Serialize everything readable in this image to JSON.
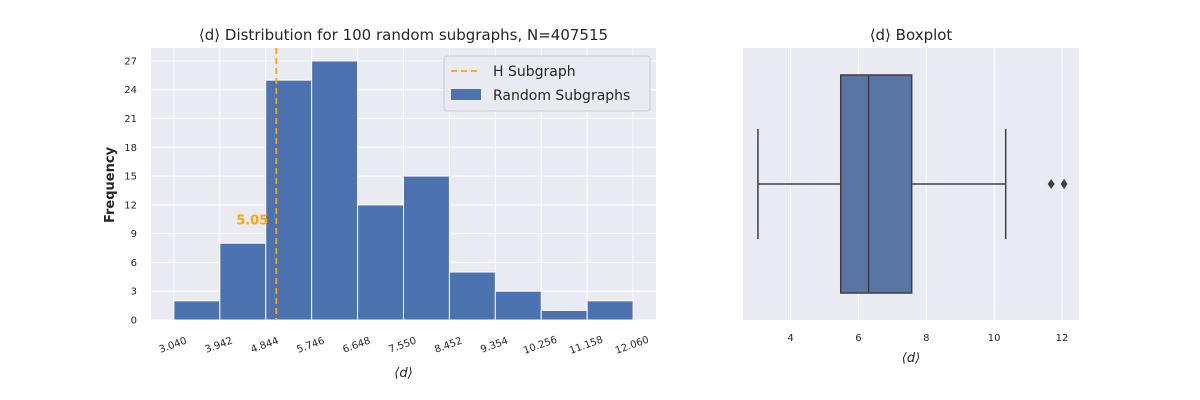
{
  "chart_data": [
    {
      "type": "bar",
      "title": "⟨d⟩ Distribution for 100 random subgraphs, N=407515",
      "xlabel": "⟨d⟩",
      "ylabel": "Frequency",
      "bin_edges": [
        3.04,
        3.942,
        4.844,
        5.746,
        6.648,
        7.55,
        8.452,
        9.354,
        10.256,
        11.158,
        12.06
      ],
      "x_tick_labels": [
        "3.040",
        "3.942",
        "4.844",
        "5.746",
        "6.648",
        "7.550",
        "8.452",
        "9.354",
        "10.256",
        "11.158",
        "12.060"
      ],
      "values": [
        2,
        8,
        25,
        27,
        12,
        15,
        5,
        3,
        1,
        2
      ],
      "y_ticks": [
        0,
        3,
        6,
        9,
        12,
        15,
        18,
        21,
        24,
        27
      ],
      "xlim": [
        2.59,
        12.51
      ],
      "ylim": [
        0,
        28.35
      ],
      "bar_color": "#4c72b0",
      "vline": {
        "x": 5.05,
        "label": "5.05",
        "color": "#ffa500"
      },
      "annotation_y": 10.5,
      "legend": [
        {
          "label": "H Subgraph",
          "style": "dashed-line",
          "color": "#ffa500"
        },
        {
          "label": "Random Subgraphs",
          "style": "patch",
          "color": "#4c72b0"
        }
      ],
      "legend_position": "top-right",
      "grid": true,
      "background": "#eaeaf2"
    },
    {
      "type": "box",
      "title": "⟨d⟩ Boxplot",
      "xlabel": "⟨d⟩",
      "x_ticks": [
        4,
        6,
        8,
        10,
        12
      ],
      "xlim": [
        2.6,
        12.5
      ],
      "whisker_low": 3.04,
      "q1": 5.48,
      "median": 6.3,
      "q3": 7.57,
      "whisker_high": 10.34,
      "outliers": [
        11.68,
        12.06
      ],
      "box_color": "#5975a4",
      "grid": true,
      "background": "#eaeaf2"
    }
  ]
}
